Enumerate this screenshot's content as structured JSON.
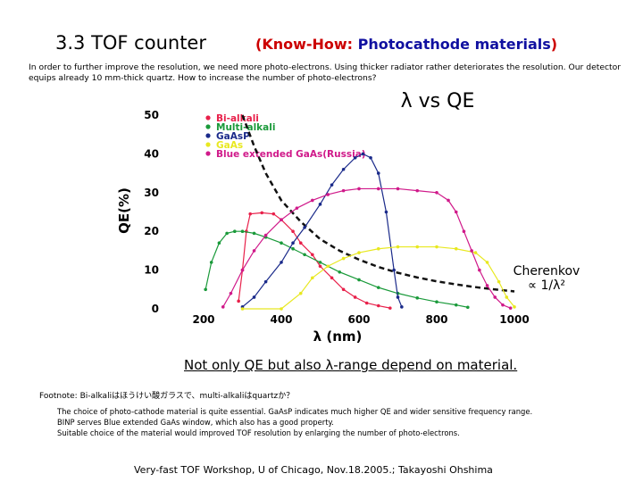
{
  "slide": {
    "title": "3.3 TOF counter",
    "subtitle_prefix": "(Know-How: ",
    "subtitle_main": "Photocathode materials",
    "subtitle_suffix": ")",
    "intro": "In order to further improve the resolution, we need more photo-electrons. Using thicker radiator rather deteriorates the resolution.  Our detector equips already 10 mm-thick quartz. How to increase the number of photo-electrons?",
    "cherenkov_label": "Cherenkov",
    "cherenkov_formula": "∝ 1/λ²",
    "note_line": "Not only QE but also λ-range depend on material.",
    "footnote": "Footnote:  Bi-alkaliはほうけい酸ガラスで、multi-alkaliはquartzか？",
    "footnote_body": [
      "The choice of photo-cathode material is quite essential. GaAsP indicates much higher QE and wider sensitive frequency range.",
      "BINP serves Blue extended GaAs window, which also has a good property.",
      "Suitable choice of the material would improved TOF resolution by enlarging the number of photo-electrons."
    ],
    "footer": "Very-fast TOF Workshop,  U of Chicago,    Nov.18.2005.;  Takayoshi Ohshima"
  },
  "chart_data": {
    "type": "line",
    "title": "λ vs QE",
    "xlabel": "λ (nm)",
    "ylabel": "QE(%)",
    "xlim": [
      200,
      1000
    ],
    "ylim": [
      0,
      50
    ],
    "xticks": [
      200,
      400,
      600,
      800,
      1000
    ],
    "yticks": [
      0,
      10,
      20,
      30,
      40,
      50
    ],
    "grid": false,
    "legend_position": "top-left",
    "series": [
      {
        "name": "Bi-alkali",
        "color": "#e8204a",
        "points": [
          [
            290,
            2
          ],
          [
            300,
            10
          ],
          [
            310,
            20
          ],
          [
            320,
            24.5
          ],
          [
            350,
            24.8
          ],
          [
            380,
            24.5
          ],
          [
            400,
            23
          ],
          [
            430,
            20
          ],
          [
            450,
            17
          ],
          [
            480,
            14
          ],
          [
            500,
            11
          ],
          [
            530,
            8
          ],
          [
            560,
            5
          ],
          [
            590,
            3
          ],
          [
            620,
            1.5
          ],
          [
            650,
            0.8
          ],
          [
            680,
            0.2
          ]
        ]
      },
      {
        "name": "Multi-alkali",
        "color": "#1a9a3a",
        "points": [
          [
            205,
            5
          ],
          [
            220,
            12
          ],
          [
            240,
            17
          ],
          [
            260,
            19.5
          ],
          [
            280,
            20
          ],
          [
            300,
            20
          ],
          [
            330,
            19.5
          ],
          [
            360,
            18.5
          ],
          [
            400,
            17
          ],
          [
            430,
            15.5
          ],
          [
            460,
            14
          ],
          [
            500,
            12
          ],
          [
            550,
            9.5
          ],
          [
            600,
            7.5
          ],
          [
            650,
            5.5
          ],
          [
            700,
            4
          ],
          [
            750,
            2.8
          ],
          [
            800,
            1.8
          ],
          [
            850,
            1
          ],
          [
            880,
            0.4
          ]
        ]
      },
      {
        "name": "GaAsP",
        "color": "#1a2a8a",
        "points": [
          [
            300,
            0.5
          ],
          [
            330,
            3
          ],
          [
            360,
            7
          ],
          [
            400,
            12
          ],
          [
            430,
            17
          ],
          [
            460,
            21
          ],
          [
            500,
            27
          ],
          [
            530,
            32
          ],
          [
            560,
            36
          ],
          [
            590,
            39
          ],
          [
            610,
            40
          ],
          [
            630,
            39
          ],
          [
            650,
            35
          ],
          [
            670,
            25
          ],
          [
            690,
            10
          ],
          [
            700,
            3
          ],
          [
            710,
            0.5
          ]
        ]
      },
      {
        "name": "GaAs",
        "color": "#e8e820",
        "points": [
          [
            300,
            0
          ],
          [
            400,
            0
          ],
          [
            450,
            4
          ],
          [
            480,
            8
          ],
          [
            520,
            11
          ],
          [
            560,
            13
          ],
          [
            600,
            14.5
          ],
          [
            650,
            15.5
          ],
          [
            700,
            16
          ],
          [
            750,
            16
          ],
          [
            800,
            16
          ],
          [
            850,
            15.5
          ],
          [
            900,
            14.5
          ],
          [
            930,
            12
          ],
          [
            960,
            7
          ],
          [
            980,
            3
          ],
          [
            1000,
            0.5
          ]
        ]
      },
      {
        "name": "Blue extended GaAs(Russia)",
        "color": "#d01a8a",
        "points": [
          [
            250,
            0.5
          ],
          [
            270,
            4
          ],
          [
            300,
            10
          ],
          [
            330,
            15
          ],
          [
            360,
            19
          ],
          [
            400,
            23
          ],
          [
            440,
            26
          ],
          [
            480,
            28
          ],
          [
            520,
            29.5
          ],
          [
            560,
            30.5
          ],
          [
            600,
            31
          ],
          [
            650,
            31
          ],
          [
            700,
            31
          ],
          [
            750,
            30.5
          ],
          [
            800,
            30
          ],
          [
            830,
            28
          ],
          [
            850,
            25
          ],
          [
            870,
            20
          ],
          [
            890,
            15
          ],
          [
            910,
            10
          ],
          [
            930,
            6
          ],
          [
            950,
            3
          ],
          [
            970,
            1
          ],
          [
            990,
            0.2
          ]
        ]
      }
    ],
    "reference_curve": {
      "label": "Cherenkov ∝ 1/λ²",
      "style": "dashed",
      "color": "#111111",
      "points": [
        [
          300,
          50
        ],
        [
          330,
          42
        ],
        [
          360,
          35
        ],
        [
          400,
          28
        ],
        [
          450,
          22.5
        ],
        [
          500,
          18
        ],
        [
          550,
          15
        ],
        [
          600,
          12.7
        ],
        [
          650,
          10.8
        ],
        [
          700,
          9.3
        ],
        [
          750,
          8.1
        ],
        [
          800,
          7.1
        ],
        [
          850,
          6.3
        ],
        [
          900,
          5.6
        ],
        [
          950,
          5
        ],
        [
          1000,
          4.5
        ]
      ]
    }
  }
}
